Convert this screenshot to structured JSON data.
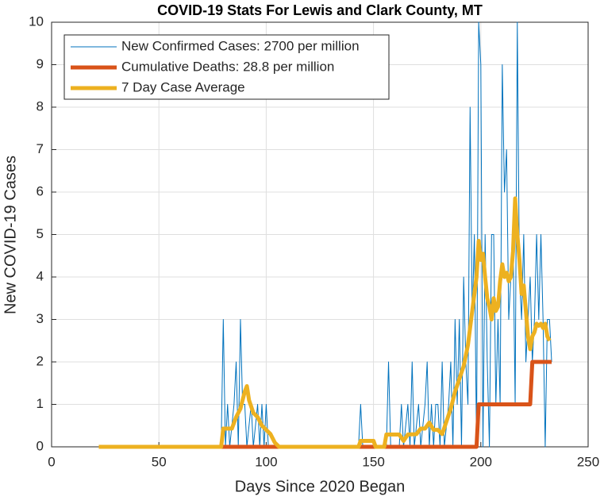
{
  "chart_data": {
    "type": "line",
    "title": "COVID-19 Stats For Lewis and Clark County, MT",
    "xlabel": "Days Since 2020 Began",
    "ylabel": "New COVID-19 Cases",
    "xlim": [
      0,
      250
    ],
    "xticks": [
      0,
      50,
      100,
      150,
      200,
      250
    ],
    "ylim": [
      0,
      10
    ],
    "yticks": [
      0,
      1,
      2,
      3,
      4,
      5,
      6,
      7,
      8,
      9,
      10
    ],
    "grid": true,
    "legend": "upper left",
    "series": [
      {
        "name": "New Confirmed Cases: 2700 per million",
        "color": "#0072bd",
        "x": [
          22,
          79,
          80,
          81,
          82,
          83,
          85,
          86,
          87,
          88,
          89,
          90,
          91,
          93,
          94,
          96,
          97,
          98,
          99,
          100,
          101,
          143,
          144,
          145,
          156,
          157,
          158,
          162,
          163,
          164,
          166,
          167,
          168,
          169,
          171,
          172,
          174,
          175,
          176,
          177,
          178,
          179,
          180,
          181,
          182,
          183,
          185,
          186,
          187,
          188,
          189,
          190,
          191,
          192,
          193,
          194,
          195,
          196,
          197,
          198,
          199,
          200,
          201,
          202,
          203,
          204,
          205,
          206,
          207,
          208,
          209,
          210,
          211,
          212,
          213,
          214,
          215,
          216,
          217,
          218,
          219,
          220,
          221,
          222,
          223,
          224,
          225,
          226,
          227,
          228,
          229,
          230,
          231,
          232,
          233
        ],
        "values": [
          0,
          0,
          3,
          0,
          1,
          0,
          1,
          2,
          0,
          3,
          1,
          1,
          0,
          1,
          0,
          1,
          0,
          1,
          0,
          1,
          0,
          0,
          1,
          0,
          0,
          2,
          0,
          0,
          1,
          0,
          1,
          0,
          2,
          0,
          1,
          0,
          1,
          2,
          0,
          1,
          0,
          1,
          1,
          0,
          2,
          0,
          1,
          2,
          0,
          3,
          1,
          3,
          0,
          4,
          2,
          1,
          8,
          3,
          5,
          0,
          10,
          9,
          0,
          5,
          2,
          0,
          5,
          5,
          1,
          3,
          1,
          9,
          6,
          7,
          3,
          4,
          5,
          1,
          10,
          4,
          3,
          5,
          2,
          3,
          4,
          2,
          3,
          5,
          3,
          5,
          3,
          0,
          3,
          3,
          2
        ]
      },
      {
        "name": "Cumulative Deaths: 28.8 per million",
        "color": "#d95319",
        "x": [
          22,
          198,
          199,
          223,
          224,
          233
        ],
        "values": [
          0,
          0,
          1,
          1,
          2,
          2
        ]
      },
      {
        "name": "7 Day Case Average",
        "color": "#edb120",
        "x": [
          22,
          79,
          80,
          84,
          86,
          88,
          90,
          91,
          92,
          94,
          96,
          98,
          100,
          102,
          104,
          106,
          143,
          144,
          150,
          151,
          155,
          156,
          162,
          164,
          166,
          170,
          172,
          174,
          176,
          178,
          180,
          182,
          184,
          186,
          188,
          190,
          192,
          194,
          196,
          198,
          199,
          200,
          201,
          202,
          203,
          204,
          205,
          206,
          207,
          208,
          209,
          210,
          211,
          212,
          213,
          214,
          215,
          216,
          217,
          218,
          219,
          220,
          221,
          222,
          223,
          224,
          225,
          226,
          227,
          228,
          229,
          230,
          231,
          232
        ],
        "values": [
          0,
          0,
          0.43,
          0.43,
          0.7,
          0.9,
          1.3,
          1.43,
          1.1,
          0.8,
          0.7,
          0.5,
          0.4,
          0.3,
          0.1,
          0,
          0,
          0.14,
          0.14,
          0,
          0,
          0.29,
          0.29,
          0.14,
          0.29,
          0.3,
          0.43,
          0.43,
          0.57,
          0.4,
          0.4,
          0.3,
          0.6,
          0.9,
          1.3,
          1.6,
          1.9,
          2.4,
          3.2,
          4.0,
          4.85,
          4.4,
          4.55,
          4.0,
          3.5,
          3.3,
          3.0,
          3.5,
          3.2,
          3.3,
          3.9,
          4.3,
          4.0,
          4.1,
          3.9,
          4.0,
          4.6,
          5.85,
          5.0,
          4.4,
          3.6,
          3.8,
          3.2,
          2.6,
          2.3,
          2.6,
          2.7,
          2.9,
          2.85,
          2.9,
          2.8,
          2.9,
          2.6,
          2.5
        ]
      }
    ]
  }
}
